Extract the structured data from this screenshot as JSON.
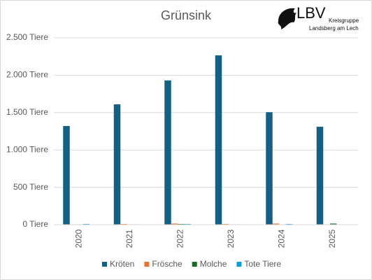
{
  "chart_data": {
    "type": "bar",
    "title": "Grünsink",
    "logo": {
      "name": "LBV",
      "line1": "Kreisgruppe",
      "line2": "Landsberg am Lech"
    },
    "categories": [
      "2020",
      "2021",
      "2022",
      "2023",
      "2024",
      "2025"
    ],
    "series": [
      {
        "name": "Kröten",
        "color": "#156082",
        "values": [
          1320,
          1610,
          1930,
          2265,
          1505,
          1310
        ]
      },
      {
        "name": "Frösche",
        "color": "#e97132",
        "values": [
          5,
          10,
          15,
          10,
          15,
          5
        ]
      },
      {
        "name": "Molche",
        "color": "#196b24",
        "values": [
          5,
          5,
          10,
          5,
          5,
          15
        ]
      },
      {
        "name": "Tote Tiere",
        "color": "#0f9ed5",
        "values": [
          10,
          5,
          10,
          5,
          10,
          5
        ]
      }
    ],
    "ylim": [
      0,
      2500
    ],
    "yticks": [
      {
        "value": 0,
        "label": "0 Tiere"
      },
      {
        "value": 500,
        "label": "500 Tiere"
      },
      {
        "value": 1000,
        "label": "1.000 Tiere"
      },
      {
        "value": 1500,
        "label": "1.500 Tiere"
      },
      {
        "value": 2000,
        "label": "2.000 Tiere"
      },
      {
        "value": 2500,
        "label": "2.500 Tiere"
      }
    ],
    "grid": true
  }
}
